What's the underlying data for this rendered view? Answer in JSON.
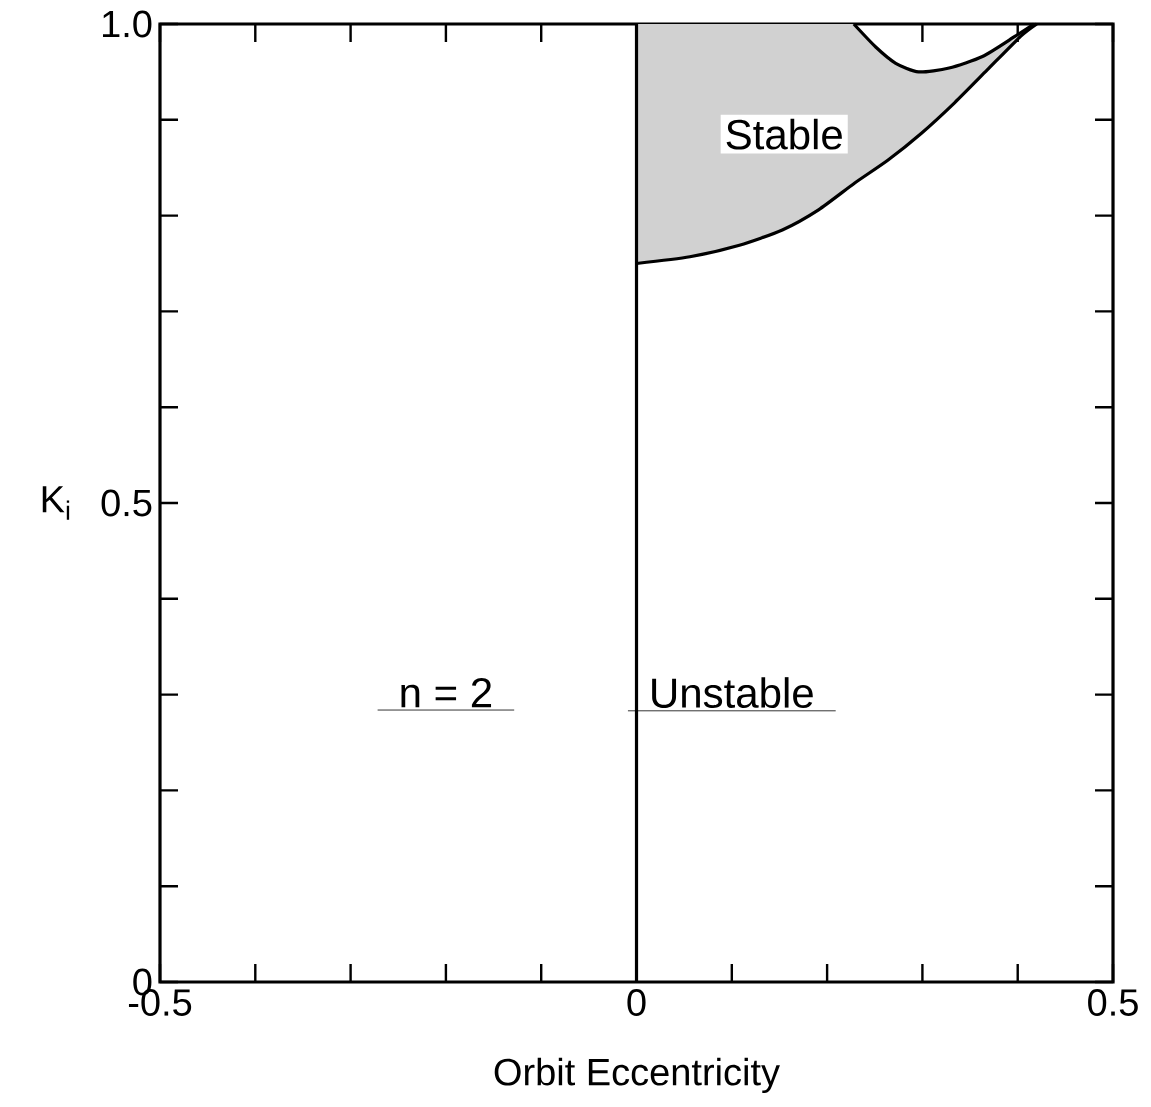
{
  "chart_data": {
    "type": "line",
    "xlabel": "Orbit Eccentricity",
    "ylabel": "K$_{i}$",
    "xlim": [
      -0.5,
      0.5
    ],
    "ylim": [
      0,
      1
    ],
    "xticks": [
      -0.5,
      0,
      0.5
    ],
    "yticks": [
      0,
      0.5,
      {
        "value": 1,
        "label": "1.0"
      }
    ],
    "series": [
      {
        "color": "#000000",
        "x": [
          0,
          0.056,
          0.108,
          0.153,
          0.191,
          0.229,
          0.264,
          0.299,
          0.334,
          0.368,
          0.403,
          0.42
        ],
        "values": [
          0.75,
          0.757,
          0.769,
          0.785,
          0.806,
          0.834,
          0.858,
          0.886,
          0.918,
          0.952,
          0.987,
          1.0
        ],
        "lower": [
          0.75,
          0.757,
          0.769,
          0.785,
          0.806,
          0.834,
          0.858,
          0.886,
          0.918,
          0.952,
          0.987,
          1.0
        ],
        "upper": [
          1.0,
          1.0,
          1.0,
          1.0,
          1.0,
          1.0,
          0.962,
          0.95,
          0.955,
          0.968,
          0.99,
          1.0
        ]
      },
      {
        "color": "#000000",
        "x": [
          0.228,
          0.251,
          0.272,
          0.296,
          0.328,
          0.363,
          0.397,
          0.417
        ],
        "values": [
          1.0,
          0.976,
          0.959,
          0.95,
          0.954,
          0.966,
          0.987,
          1.0
        ]
      }
    ],
    "ref_lines": [
      {
        "axis": "x",
        "value": 0,
        "color": "#000000"
      }
    ],
    "annotations": [
      "Stable",
      "n = 2",
      "Unstable"
    ],
    "grid": false,
    "marker": "none",
    "line_style": "solid"
  }
}
